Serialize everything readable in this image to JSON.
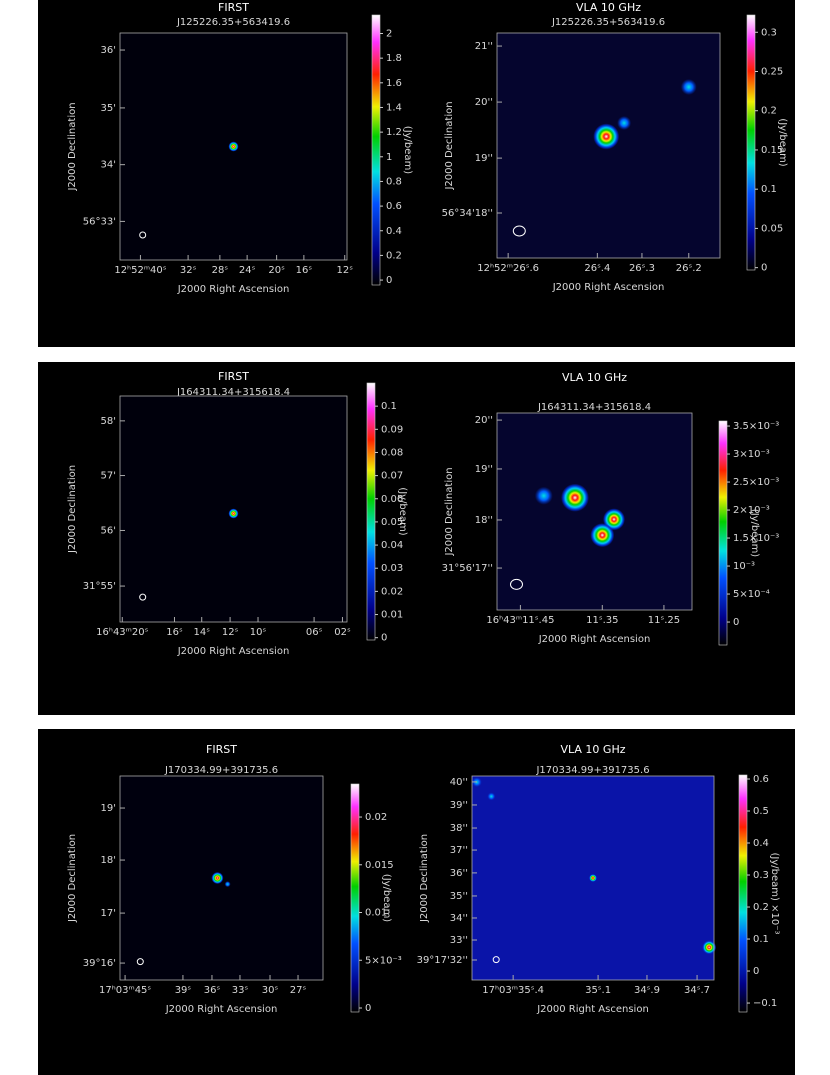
{
  "panels": [
    {
      "plots": [
        {
          "title": "FIRST",
          "source": "J125226.35+563419.6",
          "xlabel": "J2000 Right Ascension",
          "ylabel": "J2000 Declination",
          "xticks": [
            "12ʰ52ᵐ40ˢ",
            "32ˢ",
            "28ˢ",
            "24ˢ",
            "20ˢ",
            "16ˢ",
            "12ˢ"
          ],
          "yticks": [
            "56°33'",
            "34'",
            "35'",
            "36'"
          ],
          "colorbar": {
            "label": "(Jy/beam)",
            "ylim": [
              -0.04,
              2.15
            ],
            "ticks": [
              0,
              0.2,
              0.4,
              0.6,
              0.8,
              1,
              1.2,
              1.4,
              1.6,
              1.8,
              2
            ]
          }
        },
        {
          "title": "VLA 10 GHz",
          "source": "J125226.35+563419.6",
          "xlabel": "J2000 Right Ascension",
          "ylabel": "J2000 Declination",
          "xticks": [
            "12ʰ52ᵐ26ˢ.6",
            "26ˢ.4",
            "26ˢ.3",
            "26ˢ.2"
          ],
          "yticks": [
            "56°34'18''",
            "19''",
            "20''",
            "21''"
          ],
          "colorbar": {
            "label": "(Jy/beam)",
            "ylim": [
              -0.003,
              0.322
            ],
            "ticks": [
              0,
              0.05,
              0.1,
              0.15,
              0.2,
              0.25,
              0.3
            ]
          }
        }
      ]
    },
    {
      "plots": [
        {
          "title": "FIRST",
          "source": "J164311.34+315618.4",
          "xlabel": "J2000 Right Ascension",
          "ylabel": "J2000 Declination",
          "xticks": [
            "16ʰ43ᵐ20ˢ",
            "16ˢ",
            "14ˢ",
            "12ˢ",
            "10ˢ",
            "06ˢ",
            "02ˢ"
          ],
          "yticks": [
            "31°55'",
            "56'",
            "57'",
            "58'"
          ],
          "colorbar": {
            "label": "(Jy/beam)",
            "ylim": [
              -0.001,
              0.11
            ],
            "ticks": [
              0,
              0.01,
              0.02,
              0.03,
              0.04,
              0.05,
              0.06,
              0.07,
              0.08,
              0.09,
              0.1
            ]
          }
        },
        {
          "title": "VLA 10 GHz",
          "source": "J164311.34+315618.4",
          "xlabel": "J2000 Right Ascension",
          "ylabel": "J2000 Declination",
          "xticks": [
            "16ʰ43ᵐ11ˢ.45",
            "11ˢ.35",
            "11ˢ.25"
          ],
          "yticks": [
            "31°56'17''",
            "18''",
            "19''",
            "20''"
          ],
          "colorbar": {
            "label": "(Jy/beam)",
            "ylim": [
              -0.00041,
              0.00359
            ],
            "ticks": [
              0,
              {
                "value": 0.0005,
                "label": "5×10⁻⁴"
              },
              {
                "value": 0.001,
                "label": "10⁻³"
              },
              {
                "value": 0.0015,
                "label": "1.5×10⁻³"
              },
              {
                "value": 0.002,
                "label": "2×10⁻³"
              },
              {
                "value": 0.0025,
                "label": "2.5×10⁻³"
              },
              {
                "value": 0.003,
                "label": "3×10⁻³"
              },
              {
                "value": 0.0035,
                "label": "3.5×10⁻³"
              }
            ]
          }
        }
      ]
    },
    {
      "plots": [
        {
          "title": "FIRST",
          "source": "J170334.99+391735.6",
          "xlabel": "J2000 Right Ascension",
          "ylabel": "J2000 Declination",
          "xticks": [
            "17ʰ03ᵐ45ˢ",
            "39ˢ",
            "36ˢ",
            "33ˢ",
            "30ˢ",
            "27ˢ"
          ],
          "yticks": [
            "39°16'",
            "17'",
            "18'",
            "19'"
          ],
          "colorbar": {
            "label": "(Jy/beam)",
            "ylim": [
              -0.00042,
              0.02346
            ],
            "ticks": [
              0,
              {
                "value": 0.005,
                "label": "5×10⁻³"
              },
              0.01,
              0.015,
              0.02
            ]
          }
        },
        {
          "title": "VLA 10 GHz",
          "source": "J170334.99+391735.6",
          "xlabel": "J2000 Right Ascension",
          "ylabel": "J2000 Declination",
          "xticks": [
            "17ʰ03ᵐ35ˢ.4",
            "35ˢ.1",
            "34ˢ.9",
            "34ˢ.7"
          ],
          "yticks": [
            "39°17'32''",
            "33''",
            "34''",
            "35''",
            "36''",
            "37''",
            "38''",
            "39''",
            "40''"
          ],
          "colorbar": {
            "label": "(Jy/beam)  ×10⁻³",
            "ylim": [
              -0.128,
              0.6125
            ],
            "ticks": [
              {
                "value": -0.1,
                "label": "−0.1"
              },
              0,
              0.1,
              0.2,
              0.3,
              0.4,
              0.5,
              0.6
            ]
          }
        }
      ]
    }
  ]
}
